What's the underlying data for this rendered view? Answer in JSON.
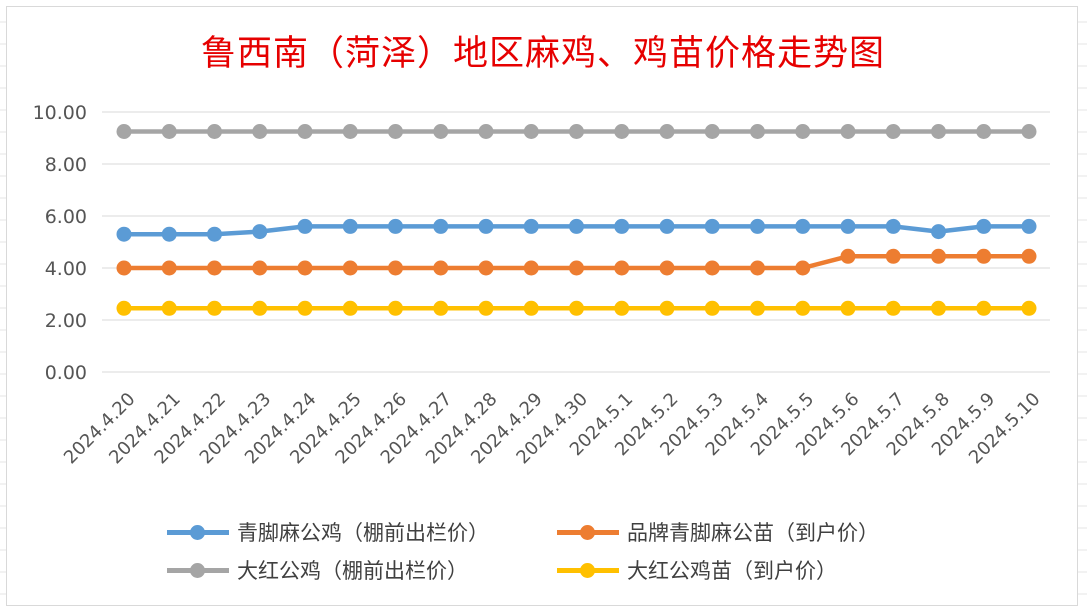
{
  "chart_data": {
    "type": "line",
    "title": "鲁西南（菏泽）地区麻鸡、鸡苗价格走势图",
    "ylim": [
      0,
      10
    ],
    "yticks": [
      "0.00",
      "2.00",
      "4.00",
      "6.00",
      "8.00",
      "10.00"
    ],
    "grid": true,
    "legend_position": "bottom",
    "categories": [
      "2024.4.20",
      "2024.4.21",
      "2024.4.22",
      "2024.4.23",
      "2024.4.24",
      "2024.4.25",
      "2024.4.26",
      "2024.4.27",
      "2024.4.28",
      "2024.4.29",
      "2024.4.30",
      "2024.5.1",
      "2024.5.2",
      "2024.5.3",
      "2024.5.4",
      "2024.5.5",
      "2024.5.6",
      "2024.5.7",
      "2024.5.8",
      "2024.5.9",
      "2024.5.10"
    ],
    "series": [
      {
        "name": "青脚麻公鸡（棚前出栏价）",
        "color": "#5b9bd5",
        "values": [
          5.3,
          5.3,
          5.3,
          5.4,
          5.6,
          5.6,
          5.6,
          5.6,
          5.6,
          5.6,
          5.6,
          5.6,
          5.6,
          5.6,
          5.6,
          5.6,
          5.6,
          5.6,
          5.4,
          5.6,
          5.6
        ]
      },
      {
        "name": "品牌青脚麻公苗（到户价）",
        "color": "#ed7d31",
        "values": [
          4.0,
          4.0,
          4.0,
          4.0,
          4.0,
          4.0,
          4.0,
          4.0,
          4.0,
          4.0,
          4.0,
          4.0,
          4.0,
          4.0,
          4.0,
          4.0,
          4.45,
          4.45,
          4.45,
          4.45,
          4.45
        ]
      },
      {
        "name": "大红公鸡（棚前出栏价）",
        "color": "#a5a5a5",
        "values": [
          9.25,
          9.25,
          9.25,
          9.25,
          9.25,
          9.25,
          9.25,
          9.25,
          9.25,
          9.25,
          9.25,
          9.25,
          9.25,
          9.25,
          9.25,
          9.25,
          9.25,
          9.25,
          9.25,
          9.25,
          9.25
        ]
      },
      {
        "name": "大红公鸡苗（到户价）",
        "color": "#ffc000",
        "values": [
          2.45,
          2.45,
          2.45,
          2.45,
          2.45,
          2.45,
          2.45,
          2.45,
          2.45,
          2.45,
          2.45,
          2.45,
          2.45,
          2.45,
          2.45,
          2.45,
          2.45,
          2.45,
          2.45,
          2.45,
          2.45
        ]
      }
    ]
  }
}
